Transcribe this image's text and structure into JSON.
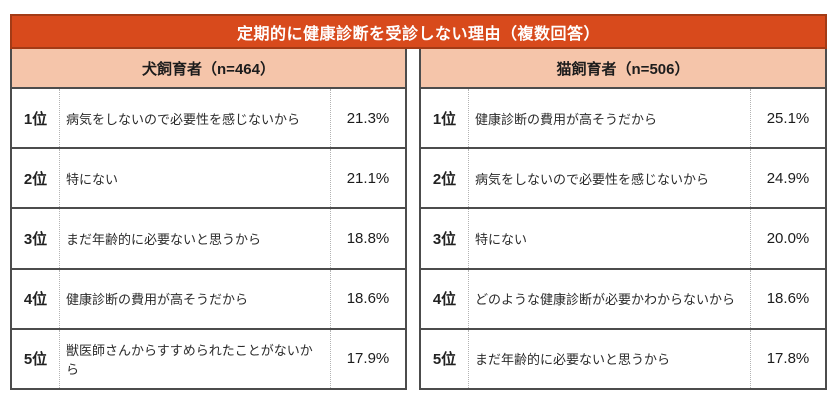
{
  "title": "定期的に健康診断を受診しない理由（複数回答）",
  "colors": {
    "title_bg": "#d84a1c",
    "title_border": "#a33b16",
    "header_bg": "#f5c5aa",
    "panel_border": "#4c4c4c"
  },
  "panels": [
    {
      "header": "犬飼育者（n=464）",
      "rows": [
        {
          "rank": "1位",
          "reason": "病気をしないので必要性を感じないから",
          "percent": "21.3%"
        },
        {
          "rank": "2位",
          "reason": "特にない",
          "percent": "21.1%"
        },
        {
          "rank": "3位",
          "reason": "まだ年齢的に必要ないと思うから",
          "percent": "18.8%"
        },
        {
          "rank": "4位",
          "reason": "健康診断の費用が高そうだから",
          "percent": "18.6%"
        },
        {
          "rank": "5位",
          "reason": "獣医師さんからすすめられたことがないから",
          "percent": "17.9%"
        }
      ]
    },
    {
      "header": "猫飼育者（n=506）",
      "rows": [
        {
          "rank": "1位",
          "reason": "健康診断の費用が高そうだから",
          "percent": "25.1%"
        },
        {
          "rank": "2位",
          "reason": "病気をしないので必要性を感じないから",
          "percent": "24.9%"
        },
        {
          "rank": "3位",
          "reason": "特にない",
          "percent": "20.0%"
        },
        {
          "rank": "4位",
          "reason": "どのような健康診断が必要かわからないから",
          "percent": "18.6%"
        },
        {
          "rank": "5位",
          "reason": "まだ年齢的に必要ないと思うから",
          "percent": "17.8%"
        }
      ]
    }
  ],
  "chart_data": {
    "type": "table",
    "title": "定期的に健康診断を受診しない理由（複数回答）",
    "groups": [
      {
        "name": "犬飼育者",
        "n": 464,
        "items": [
          {
            "rank": 1,
            "reason": "病気をしないので必要性を感じないから",
            "value_pct": 21.3
          },
          {
            "rank": 2,
            "reason": "特にない",
            "value_pct": 21.1
          },
          {
            "rank": 3,
            "reason": "まだ年齢的に必要ないと思うから",
            "value_pct": 18.8
          },
          {
            "rank": 4,
            "reason": "健康診断の費用が高そうだから",
            "value_pct": 18.6
          },
          {
            "rank": 5,
            "reason": "獣医師さんからすすめられたことがないから",
            "value_pct": 17.9
          }
        ]
      },
      {
        "name": "猫飼育者",
        "n": 506,
        "items": [
          {
            "rank": 1,
            "reason": "健康診断の費用が高そうだから",
            "value_pct": 25.1
          },
          {
            "rank": 2,
            "reason": "病気をしないので必要性を感じないから",
            "value_pct": 24.9
          },
          {
            "rank": 3,
            "reason": "特にない",
            "value_pct": 20.0
          },
          {
            "rank": 4,
            "reason": "どのような健康診断が必要かわからないから",
            "value_pct": 18.6
          },
          {
            "rank": 5,
            "reason": "まだ年齢的に必要ないと思うから",
            "value_pct": 17.8
          }
        ]
      }
    ]
  }
}
